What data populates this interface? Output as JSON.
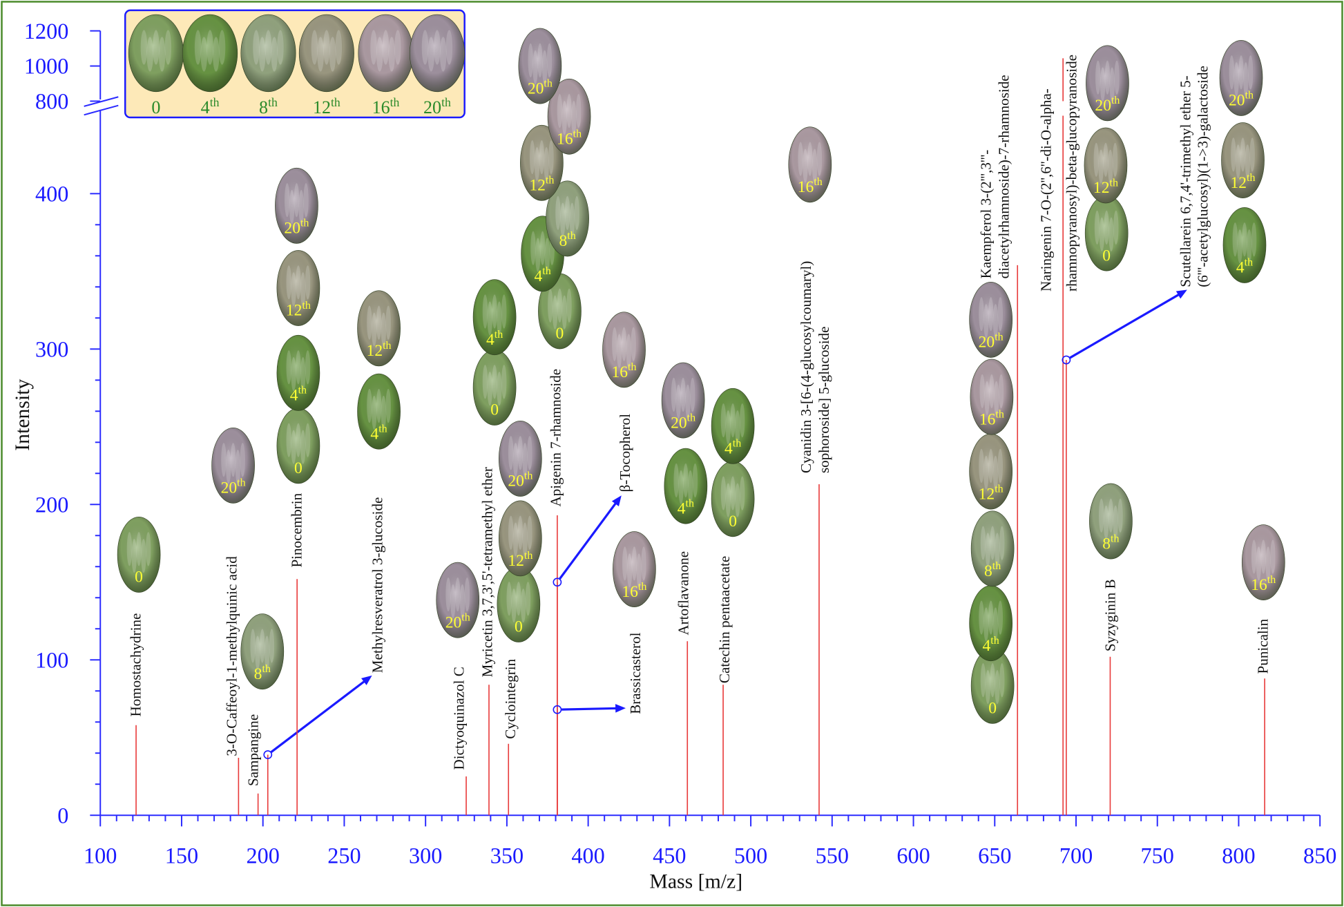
{
  "chart_data": {
    "type": "stem",
    "x_label": "Mass [m/z]",
    "y_label": "Intensity",
    "xlim": [
      100,
      850
    ],
    "xticks": [
      100,
      150,
      200,
      250,
      300,
      350,
      400,
      450,
      500,
      550,
      600,
      650,
      700,
      750,
      800,
      850
    ],
    "ylim": [
      0,
      454
    ],
    "yticks": [
      0,
      100,
      200,
      300,
      400
    ],
    "ylim_upper": [
      800,
      1200
    ],
    "yticks_upper": [
      800,
      1000,
      1200
    ],
    "color": "#e83a3a",
    "legend": {
      "stages": [
        {
          "num": "0",
          "color": "#86a865"
        },
        {
          "num": "4",
          "sup": "th",
          "color": "#6c9a46"
        },
        {
          "num": "8",
          "sup": "th",
          "color": "#98aa84"
        },
        {
          "num": "12",
          "sup": "th",
          "color": "#a19e86"
        },
        {
          "num": "16",
          "sup": "th",
          "color": "#b3a1a9"
        },
        {
          "num": "20",
          "sup": "th",
          "color": "#a597a5"
        }
      ]
    },
    "peaks": [
      {
        "label": [
          "Homostachydrine"
        ],
        "mass": 122,
        "intensity": 58,
        "stages": [
          {
            "num": "0"
          }
        ]
      },
      {
        "label": [
          "3-O-Caffeoyl-1-methylquinic acid"
        ],
        "mass": 185,
        "intensity": 37,
        "stages": [
          {
            "num": "20",
            "sup": "th"
          }
        ]
      },
      {
        "label": [
          "Sampangine"
        ],
        "mass": 197,
        "intensity": 14,
        "stages": [
          {
            "num": "8",
            "sup": "th"
          }
        ]
      },
      {
        "label": [
          "Methylresveratrol 3-glucoside"
        ],
        "mass": 203,
        "intensity": 39,
        "callout": true,
        "stages": [
          {
            "num": "4",
            "sup": "th"
          },
          {
            "num": "12",
            "sup": "th"
          }
        ]
      },
      {
        "label": [
          "Pinocembrin"
        ],
        "mass": 221,
        "intensity": 152,
        "stages": [
          {
            "num": "0"
          },
          {
            "num": "4",
            "sup": "th"
          },
          {
            "num": "12",
            "sup": "th"
          },
          {
            "num": "20",
            "sup": "th"
          }
        ]
      },
      {
        "label": [
          "Dictyoquinazol C"
        ],
        "mass": 325,
        "intensity": 25,
        "stages": [
          {
            "num": "20",
            "sup": "th"
          }
        ]
      },
      {
        "label": [
          "Myricetin 3,7,3',5'-tetramethyl ether"
        ],
        "mass": 339,
        "intensity": 84,
        "stages": [
          {
            "num": "0"
          },
          {
            "num": "4",
            "sup": "th"
          }
        ]
      },
      {
        "label": [
          "Cyclointegrin"
        ],
        "mass": 351,
        "intensity": 46,
        "stages": [
          {
            "num": "0"
          },
          {
            "num": "12",
            "sup": "th"
          },
          {
            "num": "20",
            "sup": "th"
          }
        ]
      },
      {
        "label": [
          "Apigenin 7-rhamnoside"
        ],
        "mass": 381,
        "intensity": 193,
        "stages": [
          {
            "num": "0"
          },
          {
            "num": "4",
            "sup": "th"
          },
          {
            "num": "8",
            "sup": "th"
          },
          {
            "num": "12",
            "sup": "th"
          },
          {
            "num": "16",
            "sup": "th"
          },
          {
            "num": "20",
            "sup": "th"
          }
        ]
      },
      {
        "label": [
          "β-Tocopherol"
        ],
        "mass": 381,
        "intensity": 150,
        "callout": true,
        "stages": [
          {
            "num": "16",
            "sup": "th"
          }
        ]
      },
      {
        "label": [
          "Brassicasterol"
        ],
        "mass": 381,
        "intensity": 68,
        "callout": true,
        "stages": [
          {
            "num": "16",
            "sup": "th"
          }
        ]
      },
      {
        "label": [
          "Artoflavanone"
        ],
        "mass": 461,
        "intensity": 112,
        "stages": [
          {
            "num": "4",
            "sup": "th"
          },
          {
            "num": "20",
            "sup": "th"
          }
        ]
      },
      {
        "label": [
          "Catechin pentaacetate"
        ],
        "mass": 483,
        "intensity": 84,
        "stages": [
          {
            "num": "0"
          },
          {
            "num": "4",
            "sup": "th"
          }
        ]
      },
      {
        "label": [
          "Cyanidin 3-[6-(4-glucosylcoumaryl)",
          "sophoroside] 5-glucoside"
        ],
        "mass": 542,
        "intensity": 213,
        "stages": [
          {
            "num": "16",
            "sup": "th"
          }
        ]
      },
      {
        "label": [
          "Kaempferol 3-(2''',3'''-",
          "diacetylrhamnoside)-7-rhamnoside"
        ],
        "mass": 664,
        "intensity": 354,
        "stages": [
          {
            "num": "0"
          },
          {
            "num": "4",
            "sup": "th"
          },
          {
            "num": "8",
            "sup": "th"
          },
          {
            "num": "12",
            "sup": "th"
          },
          {
            "num": "16",
            "sup": "th"
          },
          {
            "num": "20",
            "sup": "th"
          }
        ]
      },
      {
        "label": [
          "Naringenin 7-O-(2'',6''-di-O-alpha-",
          "rhamnopyranosyl)-beta-glucopyranoside"
        ],
        "mass": 692,
        "intensity": 1044,
        "stages": [
          {
            "num": "0"
          },
          {
            "num": "12",
            "sup": "th"
          },
          {
            "num": "20",
            "sup": "th"
          }
        ]
      },
      {
        "label": [
          "Scutellarein 6,7,4'-trimethyl ether 5-",
          "(6'''-acetylglucosyl)(1->3)-galactoside"
        ],
        "mass": 694,
        "intensity": 293,
        "callout": true,
        "stages": [
          {
            "num": "4",
            "sup": "th"
          },
          {
            "num": "12",
            "sup": "th"
          },
          {
            "num": "20",
            "sup": "th"
          }
        ]
      },
      {
        "label": [
          "Syzyginin B"
        ],
        "mass": 721,
        "intensity": 102,
        "stages": [
          {
            "num": "8",
            "sup": "th"
          }
        ]
      },
      {
        "label": [
          "Punicalin"
        ],
        "mass": 816,
        "intensity": 88,
        "stages": [
          {
            "num": "16",
            "sup": "th"
          }
        ]
      }
    ]
  }
}
